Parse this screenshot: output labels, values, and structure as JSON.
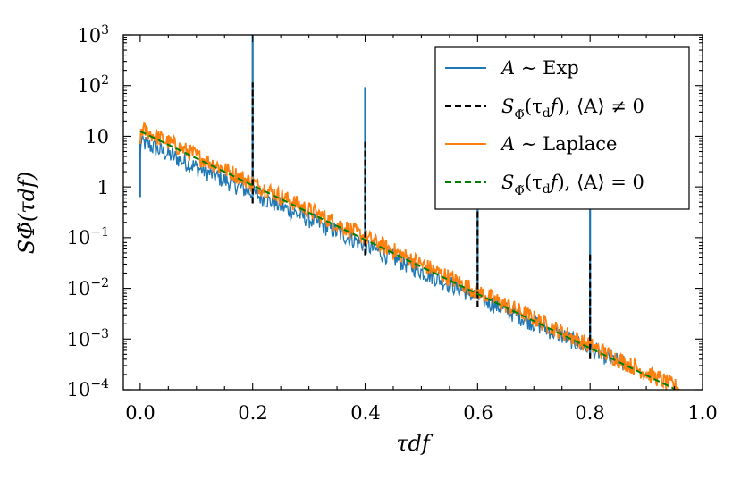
{
  "chart_data": {
    "type": "line",
    "title": "",
    "xlabel": "τdf",
    "ylabel": "SΦ̃(τdf)",
    "xlim": [
      -0.03,
      1.0
    ],
    "ylim_log10": [
      -4,
      3
    ],
    "x_ticks": [
      0.0,
      0.2,
      0.4,
      0.6,
      0.8,
      1.0
    ],
    "x_tick_labels": [
      "0.0",
      "0.2",
      "0.4",
      "0.6",
      "0.8",
      "1.0"
    ],
    "y_ticks_log10": [
      -4,
      -3,
      -2,
      -1,
      0,
      1,
      2,
      3
    ],
    "y_tick_labels": [
      {
        "base": "10",
        "exp": "−4"
      },
      {
        "base": "10",
        "exp": "−3"
      },
      {
        "base": "10",
        "exp": "−2"
      },
      {
        "base": "10",
        "exp": "−1"
      },
      {
        "base": "1",
        "exp": ""
      },
      {
        "base": "10",
        "exp": ""
      },
      {
        "base": "10",
        "exp": "2"
      },
      {
        "base": "10",
        "exp": "3"
      }
    ],
    "legend_position": "top-right",
    "colors": {
      "exp": "#1f77b4",
      "laplace": "#ff7f0e",
      "black": "#000000",
      "green": "#008000"
    },
    "series": [
      {
        "name": "A ~ Exp",
        "color": "#1f77b4",
        "style": "solid",
        "log10_at_0": 0.9,
        "log10_slope": -5.12,
        "noise_log10": 0.18,
        "x_end": 0.86,
        "spikes": [
          {
            "x": 0.2,
            "log10": 3.0
          },
          {
            "x": 0.4,
            "log10": 1.97
          },
          {
            "x": 0.6,
            "log10": -0.4
          },
          {
            "x": 0.8,
            "log10": -0.05
          }
        ]
      },
      {
        "name": "SΦ̃(τdf), ⟨A⟩ ≠ 0",
        "color": "#000000",
        "style": "dashed",
        "spikes": [
          {
            "x": 0.2,
            "log10": 2.06
          },
          {
            "x": 0.4,
            "log10": 0.95
          },
          {
            "x": 0.6,
            "log10": -0.45
          },
          {
            "x": 0.8,
            "log10": -1.3
          }
        ]
      },
      {
        "name": "A ~ Laplace",
        "color": "#ff7f0e",
        "style": "solid",
        "log10_at_0": 1.15,
        "log10_slope": -5.35,
        "noise_log10": 0.17,
        "x_end": 0.96
      },
      {
        "name": "SΦ̃(τdf), ⟨A⟩ = 0",
        "color": "#008000",
        "style": "dashed",
        "log10_at_0": 1.1,
        "log10_slope": -5.35,
        "x_end": 0.95
      }
    ],
    "legend": {
      "exp": {
        "a": "A",
        "rest": " ∼ Exp"
      },
      "black": {
        "s": "S",
        "sub": "Φ̃",
        "args": "(τ",
        "d": "d",
        "f": "f",
        "tail": "), ⟨A⟩ ≠ 0"
      },
      "laplace": {
        "a": "A",
        "rest": " ∼ Laplace"
      },
      "green": {
        "s": "S",
        "sub": "Φ̃",
        "args": "(τ",
        "d": "d",
        "f": "f",
        "tail": "), ⟨A⟩ = 0"
      }
    }
  }
}
